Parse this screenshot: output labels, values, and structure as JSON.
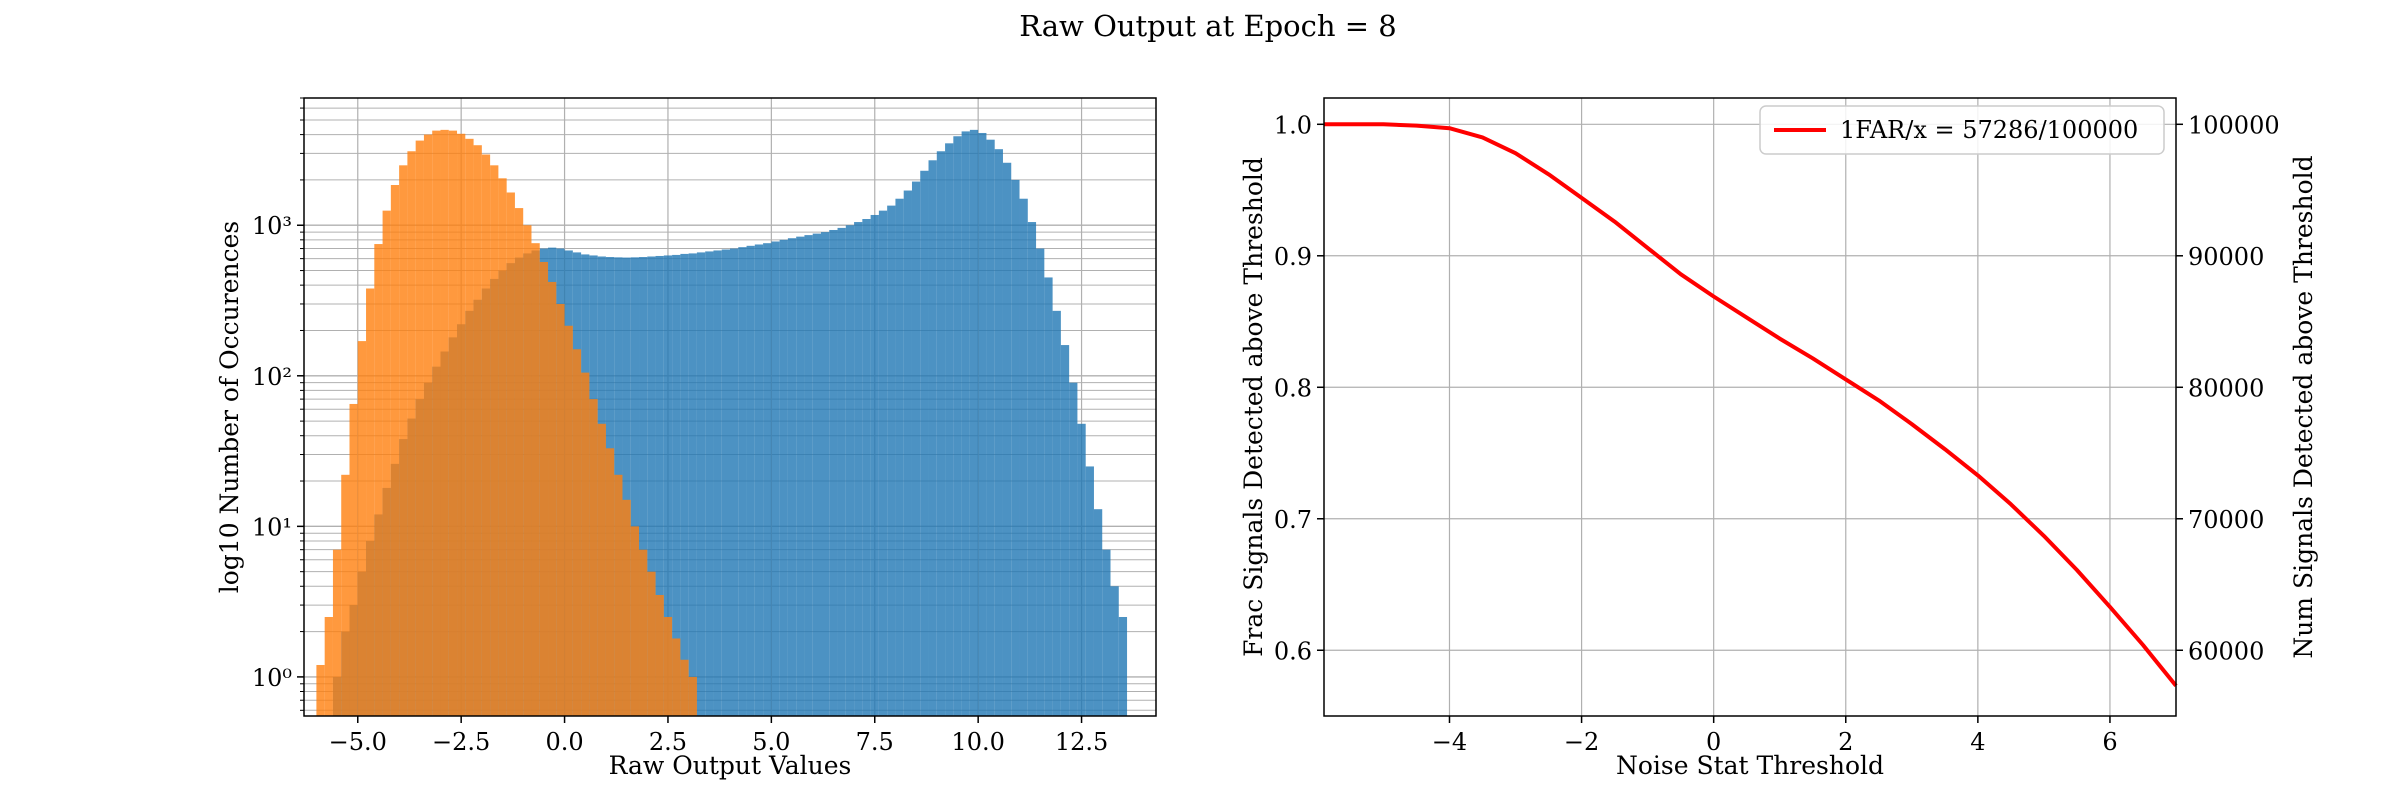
{
  "figure": {
    "title": "Raw Output at Epoch = 8"
  },
  "chart_data": [
    {
      "type": "bar",
      "subtype": "histogram",
      "xlabel": "Raw Output Values",
      "ylabel": "log10 Number of Occurences",
      "yscale": "log",
      "xlim": [
        -6.3,
        14.3
      ],
      "ylim": [
        0.55,
        7000
      ],
      "grid": true,
      "x_ticks": [
        -5,
        -2.5,
        0,
        2.5,
        5,
        7.5,
        10,
        12.5
      ],
      "x_tick_labels": [
        "−5.0",
        "−2.5",
        "0.0",
        "2.5",
        "5.0",
        "7.5",
        "10.0",
        "12.5"
      ],
      "y_ticks": [
        1,
        10,
        100,
        1000
      ],
      "y_tick_labels": [
        "10⁰",
        "10¹",
        "10²",
        "10³"
      ],
      "colors": {
        "series_1": "#1f77b4",
        "series_2": "#ff7f0e"
      },
      "alpha": 0.8,
      "series": [
        {
          "bins": [
            [
              -5.8,
              0.55
            ],
            [
              -5.6,
              1
            ],
            [
              -5.4,
              2
            ],
            [
              -5.2,
              3
            ],
            [
              -5.0,
              5
            ],
            [
              -4.8,
              8
            ],
            [
              -4.6,
              12
            ],
            [
              -4.4,
              18
            ],
            [
              -4.2,
              26
            ],
            [
              -4.0,
              38
            ],
            [
              -3.8,
              52
            ],
            [
              -3.6,
              70
            ],
            [
              -3.4,
              90
            ],
            [
              -3.2,
              115
            ],
            [
              -3.0,
              145
            ],
            [
              -2.8,
              180
            ],
            [
              -2.6,
              220
            ],
            [
              -2.4,
              270
            ],
            [
              -2.2,
              320
            ],
            [
              -2.0,
              380
            ],
            [
              -1.8,
              440
            ],
            [
              -1.6,
              500
            ],
            [
              -1.4,
              560
            ],
            [
              -1.2,
              610
            ],
            [
              -1.0,
              650
            ],
            [
              -0.8,
              680
            ],
            [
              -0.6,
              700
            ],
            [
              -0.4,
              710
            ],
            [
              -0.2,
              700
            ],
            [
              0.0,
              680
            ],
            [
              0.2,
              660
            ],
            [
              0.4,
              640
            ],
            [
              0.6,
              630
            ],
            [
              0.8,
              620
            ],
            [
              1.0,
              615
            ],
            [
              1.2,
              612
            ],
            [
              1.4,
              610
            ],
            [
              1.6,
              612
            ],
            [
              1.8,
              615
            ],
            [
              2.0,
              620
            ],
            [
              2.2,
              625
            ],
            [
              2.4,
              630
            ],
            [
              2.6,
              635
            ],
            [
              2.8,
              645
            ],
            [
              3.0,
              650
            ],
            [
              3.2,
              660
            ],
            [
              3.4,
              670
            ],
            [
              3.6,
              680
            ],
            [
              3.8,
              690
            ],
            [
              4.0,
              700
            ],
            [
              4.2,
              715
            ],
            [
              4.4,
              730
            ],
            [
              4.6,
              745
            ],
            [
              4.8,
              760
            ],
            [
              5.0,
              780
            ],
            [
              5.2,
              800
            ],
            [
              5.4,
              820
            ],
            [
              5.6,
              840
            ],
            [
              5.8,
              860
            ],
            [
              6.0,
              880
            ],
            [
              6.2,
              900
            ],
            [
              6.4,
              930
            ],
            [
              6.6,
              960
            ],
            [
              6.8,
              1000
            ],
            [
              7.0,
              1050
            ],
            [
              7.2,
              1100
            ],
            [
              7.4,
              1170
            ],
            [
              7.6,
              1250
            ],
            [
              7.8,
              1350
            ],
            [
              8.0,
              1500
            ],
            [
              8.2,
              1700
            ],
            [
              8.4,
              1950
            ],
            [
              8.6,
              2300
            ],
            [
              8.8,
              2700
            ],
            [
              9.0,
              3100
            ],
            [
              9.2,
              3500
            ],
            [
              9.4,
              3900
            ],
            [
              9.6,
              4200
            ],
            [
              9.8,
              4300
            ],
            [
              10.0,
              4100
            ],
            [
              10.2,
              3700
            ],
            [
              10.4,
              3200
            ],
            [
              10.6,
              2600
            ],
            [
              10.8,
              2000
            ],
            [
              11.0,
              1500
            ],
            [
              11.2,
              1050
            ],
            [
              11.4,
              700
            ],
            [
              11.6,
              450
            ],
            [
              11.8,
              270
            ],
            [
              12.0,
              160
            ],
            [
              12.2,
              90
            ],
            [
              12.4,
              48
            ],
            [
              12.6,
              25
            ],
            [
              12.8,
              13
            ],
            [
              13.0,
              7
            ],
            [
              13.2,
              4
            ],
            [
              13.4,
              2.5
            ]
          ]
        },
        {
          "bins": [
            [
              -6.0,
              1.2
            ],
            [
              -5.8,
              2.5
            ],
            [
              -5.6,
              7
            ],
            [
              -5.4,
              22
            ],
            [
              -5.2,
              65
            ],
            [
              -5.0,
              170
            ],
            [
              -4.8,
              380
            ],
            [
              -4.6,
              750
            ],
            [
              -4.4,
              1250
            ],
            [
              -4.2,
              1850
            ],
            [
              -4.0,
              2500
            ],
            [
              -3.8,
              3100
            ],
            [
              -3.6,
              3650
            ],
            [
              -3.4,
              4000
            ],
            [
              -3.2,
              4250
            ],
            [
              -3.0,
              4300
            ],
            [
              -2.8,
              4250
            ],
            [
              -2.6,
              4050
            ],
            [
              -2.4,
              3750
            ],
            [
              -2.2,
              3400
            ],
            [
              -2.0,
              2950
            ],
            [
              -1.8,
              2500
            ],
            [
              -1.6,
              2050
            ],
            [
              -1.4,
              1650
            ],
            [
              -1.2,
              1300
            ],
            [
              -1.0,
              1000
            ],
            [
              -0.8,
              760
            ],
            [
              -0.6,
              570
            ],
            [
              -0.4,
              420
            ],
            [
              -0.2,
              300
            ],
            [
              0.0,
              215
            ],
            [
              0.2,
              150
            ],
            [
              0.4,
              105
            ],
            [
              0.6,
              70
            ],
            [
              0.8,
              48
            ],
            [
              1.0,
              33
            ],
            [
              1.2,
              22
            ],
            [
              1.4,
              15
            ],
            [
              1.6,
              10
            ],
            [
              1.8,
              7
            ],
            [
              2.0,
              5
            ],
            [
              2.2,
              3.5
            ],
            [
              2.4,
              2.5
            ],
            [
              2.6,
              1.8
            ],
            [
              2.8,
              1.3
            ],
            [
              3.0,
              1
            ]
          ]
        }
      ]
    },
    {
      "type": "line",
      "xlabel": "Noise Stat Threshold",
      "ylabel": "Frac Signals Detected above Threshold",
      "ylabel_right": "Num Signals Detected above Threshold",
      "xlim": [
        -5.9,
        7.0
      ],
      "ylim": [
        0.55,
        1.02
      ],
      "ylim_right": [
        55000,
        102000
      ],
      "grid": true,
      "legend_position": "top-right",
      "x_ticks": [
        -4,
        -2,
        0,
        2,
        4,
        6
      ],
      "x_tick_labels": [
        "−4",
        "−2",
        "0",
        "2",
        "4",
        "6"
      ],
      "y_ticks": [
        0.6,
        0.7,
        0.8,
        0.9,
        1.0
      ],
      "y_tick_labels": [
        "0.6",
        "0.7",
        "0.8",
        "0.9",
        "1.0"
      ],
      "y_ticks_right": [
        60000,
        70000,
        80000,
        90000,
        100000
      ],
      "y_tick_labels_right": [
        "60000",
        "70000",
        "80000",
        "90000",
        "100000"
      ],
      "series": [
        {
          "name": "1FAR/x = 57286/100000",
          "color": "#ff0000",
          "x": [
            -5.9,
            -5.5,
            -5.0,
            -4.5,
            -4.0,
            -3.5,
            -3.0,
            -2.5,
            -2.0,
            -1.5,
            -1.0,
            -0.5,
            0.0,
            0.5,
            1.0,
            1.5,
            2.0,
            2.5,
            3.0,
            3.5,
            4.0,
            4.5,
            5.0,
            5.5,
            6.0,
            6.5,
            7.0
          ],
          "y": [
            1.0,
            1.0,
            1.0,
            0.999,
            0.997,
            0.99,
            0.978,
            0.962,
            0.944,
            0.926,
            0.906,
            0.886,
            0.869,
            0.853,
            0.837,
            0.822,
            0.806,
            0.79,
            0.772,
            0.753,
            0.733,
            0.711,
            0.687,
            0.661,
            0.633,
            0.604,
            0.573
          ]
        }
      ]
    }
  ]
}
